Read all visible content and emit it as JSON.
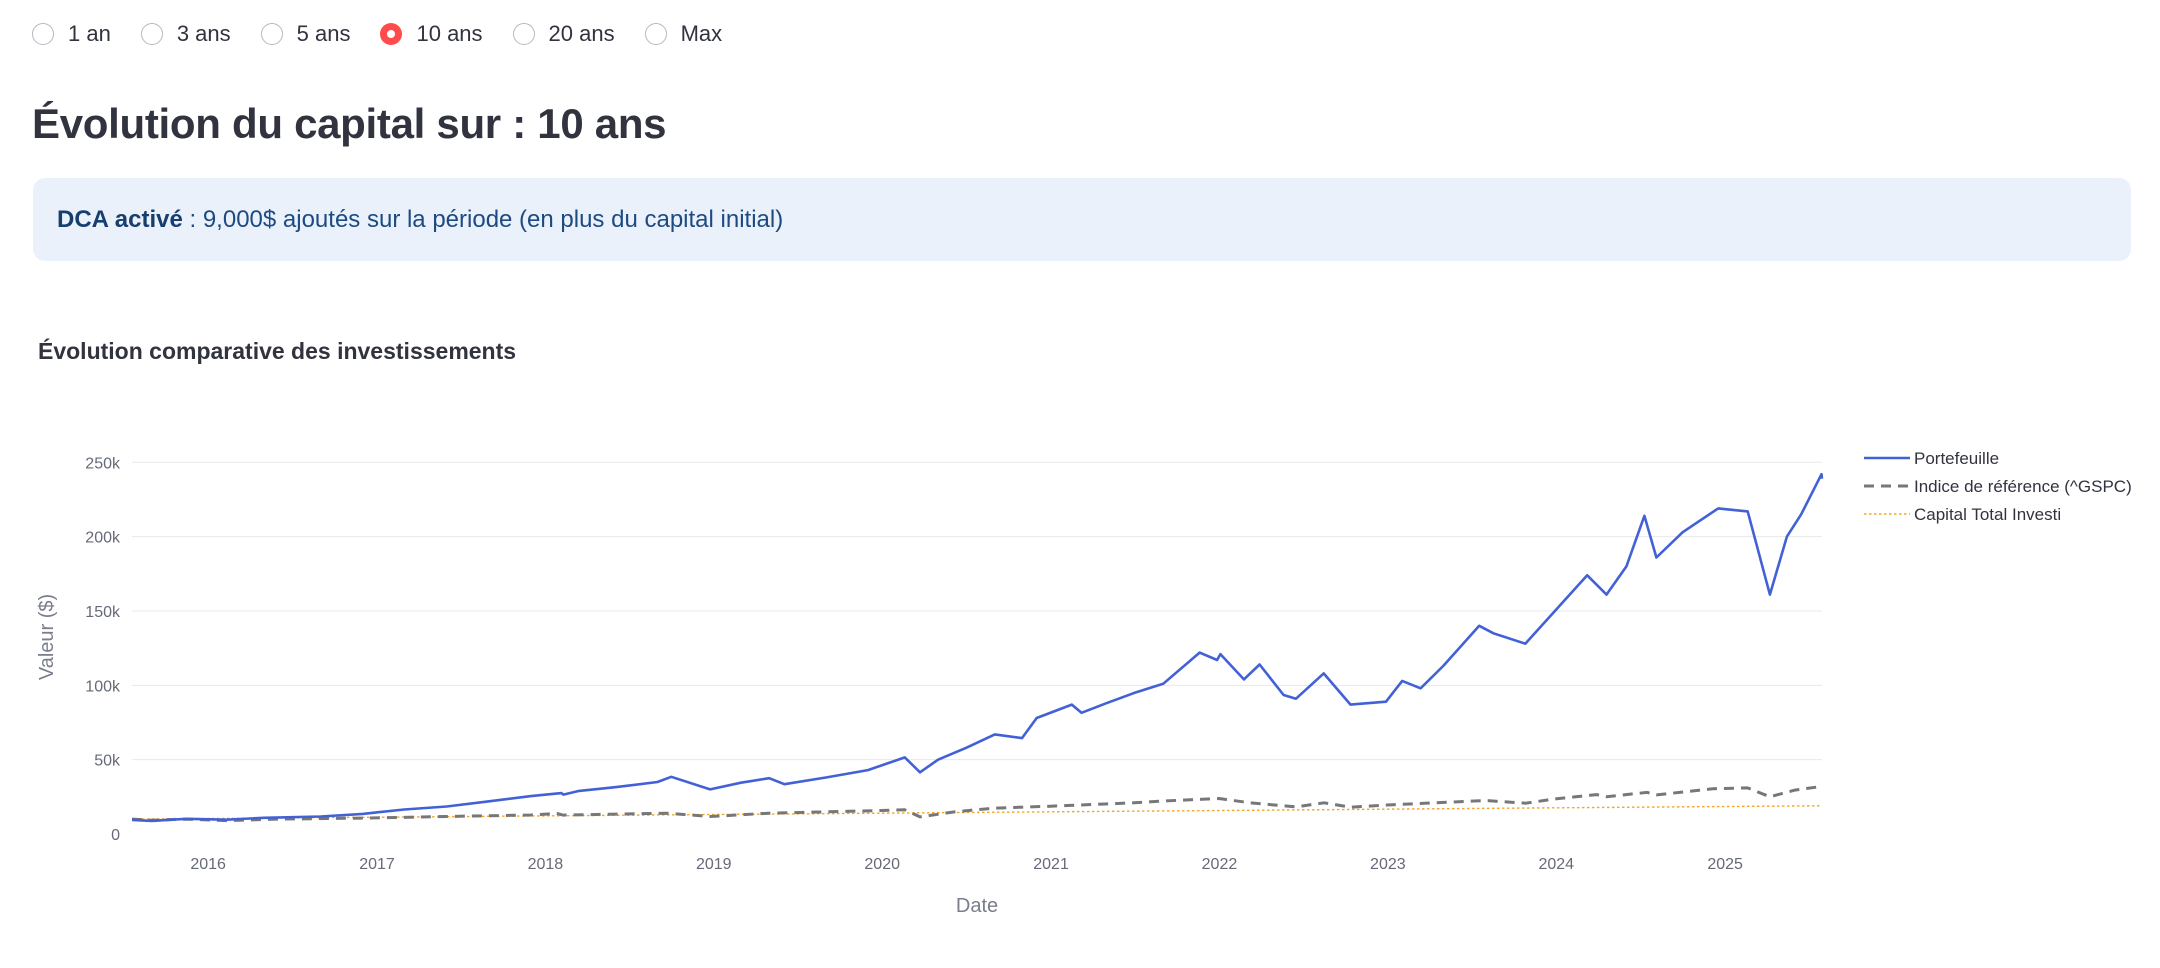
{
  "period_selector": {
    "options": [
      "1 an",
      "3 ans",
      "5 ans",
      "10 ans",
      "20 ans",
      "Max"
    ],
    "selected_index": 3
  },
  "page_title": "Évolution du capital sur : 10 ans",
  "info": {
    "bold": "DCA activé",
    "text": " : 9,000$ ajoutés sur la période (en plus du capital initial)"
  },
  "colors": {
    "accent": "#ff4b4b",
    "portfolio": "#4361d6",
    "benchmark": "#777777",
    "invested": "#f5a623"
  },
  "chart_data": {
    "type": "line",
    "title": "Évolution comparative des investissements",
    "xlabel": "Date",
    "ylabel": "Valeur ($)",
    "x_range": [
      "2015-07-20",
      "2025-07-30"
    ],
    "ylim": [
      0,
      265000
    ],
    "y_ticks": [
      0,
      50000,
      100000,
      150000,
      200000,
      250000
    ],
    "y_tick_labels": [
      "0",
      "50k",
      "100k",
      "150k",
      "200k",
      "250k"
    ],
    "x_ticks": [
      "2016-01-01",
      "2017-01-01",
      "2018-01-01",
      "2019-01-01",
      "2020-01-01",
      "2021-01-01",
      "2022-01-01",
      "2023-01-01",
      "2024-01-01",
      "2025-01-01"
    ],
    "x_tick_labels": [
      "2016",
      "2017",
      "2018",
      "2019",
      "2020",
      "2021",
      "2022",
      "2023",
      "2024",
      "2025"
    ],
    "grid": true,
    "legend_position": "right",
    "series": [
      {
        "name": "Portefeuille",
        "style": "solid",
        "points": [
          [
            "2015-07-20",
            9500
          ],
          [
            "2015-09-01",
            8800
          ],
          [
            "2015-11-15",
            10200
          ],
          [
            "2016-02-10",
            9600
          ],
          [
            "2016-05-01",
            10900
          ],
          [
            "2016-09-01",
            11800
          ],
          [
            "2016-12-01",
            13500
          ],
          [
            "2017-03-01",
            16500
          ],
          [
            "2017-06-01",
            18500
          ],
          [
            "2017-09-01",
            22000
          ],
          [
            "2017-12-01",
            25500
          ],
          [
            "2018-02-05",
            27500
          ],
          [
            "2018-02-09",
            26500
          ],
          [
            "2018-03-15",
            29000
          ],
          [
            "2018-06-01",
            31500
          ],
          [
            "2018-09-01",
            35000
          ],
          [
            "2018-10-01",
            38500
          ],
          [
            "2018-12-24",
            30000
          ],
          [
            "2019-03-01",
            34500
          ],
          [
            "2019-05-01",
            37500
          ],
          [
            "2019-06-03",
            33500
          ],
          [
            "2019-09-01",
            38000
          ],
          [
            "2019-12-01",
            43000
          ],
          [
            "2020-02-19",
            51500
          ],
          [
            "2020-03-23",
            41500
          ],
          [
            "2020-05-01",
            50000
          ],
          [
            "2020-07-01",
            58000
          ],
          [
            "2020-09-01",
            67000
          ],
          [
            "2020-10-30",
            64500
          ],
          [
            "2020-12-01",
            78000
          ],
          [
            "2021-02-15",
            87000
          ],
          [
            "2021-03-08",
            81500
          ],
          [
            "2021-05-01",
            88000
          ],
          [
            "2021-07-01",
            95000
          ],
          [
            "2021-09-01",
            101000
          ],
          [
            "2021-11-19",
            122000
          ],
          [
            "2021-12-27",
            117000
          ],
          [
            "2022-01-03",
            121000
          ],
          [
            "2022-02-23",
            104000
          ],
          [
            "2022-03-29",
            114000
          ],
          [
            "2022-05-20",
            93500
          ],
          [
            "2022-06-16",
            91000
          ],
          [
            "2022-08-15",
            108000
          ],
          [
            "2022-10-12",
            87000
          ],
          [
            "2022-12-28",
            89000
          ],
          [
            "2023-02-01",
            103000
          ],
          [
            "2023-03-13",
            98000
          ],
          [
            "2023-05-01",
            113000
          ],
          [
            "2023-07-18",
            140000
          ],
          [
            "2023-08-18",
            135000
          ],
          [
            "2023-10-26",
            128000
          ],
          [
            "2023-12-29",
            150000
          ],
          [
            "2024-03-08",
            174000
          ],
          [
            "2024-04-19",
            161000
          ],
          [
            "2024-06-01",
            180000
          ],
          [
            "2024-07-10",
            214000
          ],
          [
            "2024-08-05",
            186000
          ],
          [
            "2024-10-01",
            203000
          ],
          [
            "2024-12-17",
            219000
          ],
          [
            "2025-02-19",
            217000
          ],
          [
            "2025-04-08",
            161000
          ],
          [
            "2025-05-15",
            200000
          ],
          [
            "2025-06-15",
            215000
          ],
          [
            "2025-07-29",
            242000
          ],
          [
            "2025-07-30",
            239000
          ]
        ]
      },
      {
        "name": "Indice de référence (^GSPC)",
        "style": "dash",
        "points": [
          [
            "2015-07-20",
            10000
          ],
          [
            "2015-09-01",
            9300
          ],
          [
            "2015-11-15",
            10000
          ],
          [
            "2016-02-10",
            9000
          ],
          [
            "2016-06-01",
            10000
          ],
          [
            "2016-12-01",
            10700
          ],
          [
            "2017-06-01",
            11800
          ],
          [
            "2017-12-01",
            12800
          ],
          [
            "2018-01-26",
            13800
          ],
          [
            "2018-02-08",
            12700
          ],
          [
            "2018-09-20",
            14000
          ],
          [
            "2018-12-24",
            11800
          ],
          [
            "2019-04-30",
            14000
          ],
          [
            "2019-12-31",
            15800
          ],
          [
            "2020-02-19",
            16300
          ],
          [
            "2020-03-23",
            11500
          ],
          [
            "2020-06-08",
            15000
          ],
          [
            "2020-09-02",
            17400
          ],
          [
            "2020-12-31",
            18700
          ],
          [
            "2021-06-30",
            21000
          ],
          [
            "2021-09-02",
            22200
          ],
          [
            "2021-12-31",
            23900
          ],
          [
            "2022-03-08",
            21000
          ],
          [
            "2022-06-16",
            18200
          ],
          [
            "2022-08-16",
            21000
          ],
          [
            "2022-10-12",
            18000
          ],
          [
            "2022-12-30",
            19500
          ],
          [
            "2023-07-31",
            22500
          ],
          [
            "2023-10-27",
            20700
          ],
          [
            "2023-12-29",
            23600
          ],
          [
            "2024-03-28",
            26500
          ],
          [
            "2024-04-19",
            25100
          ],
          [
            "2024-07-16",
            28000
          ],
          [
            "2024-08-05",
            26300
          ],
          [
            "2024-12-06",
            30500
          ],
          [
            "2025-02-19",
            31000
          ],
          [
            "2025-04-08",
            25000
          ],
          [
            "2025-06-01",
            29500
          ],
          [
            "2025-07-30",
            32000
          ]
        ]
      },
      {
        "name": "Capital Total Investi",
        "style": "dot",
        "points": [
          [
            "2015-07-20",
            10000
          ],
          [
            "2016-07-20",
            10900
          ],
          [
            "2017-07-20",
            11800
          ],
          [
            "2018-07-20",
            12700
          ],
          [
            "2019-07-20",
            13600
          ],
          [
            "2020-07-20",
            14500
          ],
          [
            "2021-07-20",
            15400
          ],
          [
            "2022-07-20",
            16300
          ],
          [
            "2023-07-20",
            17200
          ],
          [
            "2024-07-20",
            18100
          ],
          [
            "2025-07-20",
            19000
          ],
          [
            "2025-07-30",
            19000
          ]
        ]
      }
    ]
  }
}
